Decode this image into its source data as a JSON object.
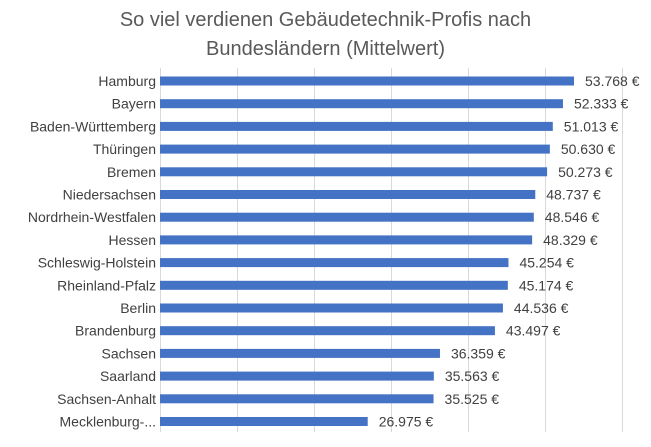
{
  "chart_data": {
    "type": "bar",
    "orientation": "horizontal",
    "title_lines": [
      "So viel verdienen Gebäudetechnik-Profis  nach",
      "Bundesländern  (Mittelwert)"
    ],
    "categories": [
      "Hamburg",
      "Bayern",
      "Baden-Württemberg",
      "Thüringen",
      "Bremen",
      "Niedersachsen",
      "Nordrhein-Westfalen",
      "Hessen",
      "Schleswig-Holstein",
      "Rheinland-Pfalz",
      "Berlin",
      "Brandenburg",
      "Sachsen",
      "Saarland",
      "Sachsen-Anhalt",
      "Mecklenburg-..."
    ],
    "values": [
      53768,
      52333,
      51013,
      50630,
      50273,
      48737,
      48546,
      48329,
      45254,
      45174,
      44536,
      43497,
      36359,
      35563,
      35525,
      26975
    ],
    "value_labels": [
      "53.768 €",
      "52.333 €",
      "51.013 €",
      "50.630 €",
      "50.273 €",
      "48.737 €",
      "48.546 €",
      "48.329 €",
      "45.254 €",
      "45.174 €",
      "44.536 €",
      "43.497 €",
      "36.359 €",
      "35.563 €",
      "35.525 €",
      "26.975 €"
    ],
    "xlim": [
      0,
      60000
    ],
    "x_gridlines": [
      0,
      10000,
      20000,
      30000,
      40000,
      50000,
      60000
    ],
    "grid": true,
    "legend": "none",
    "bar_color": "#4472c4",
    "gridline_color": "#d9d9d9"
  }
}
